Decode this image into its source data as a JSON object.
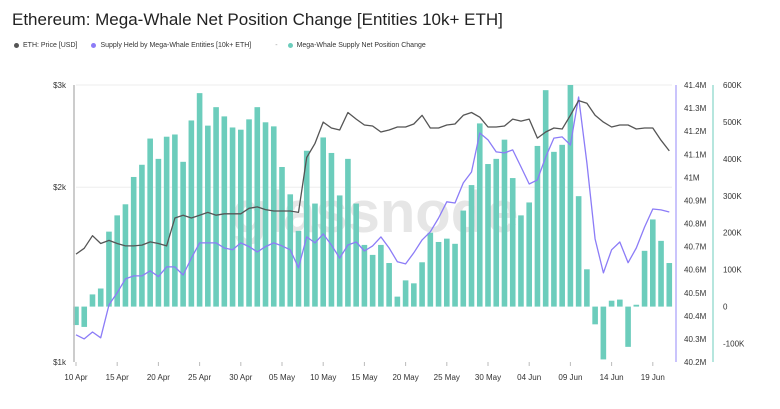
{
  "title": "Ethereum: Mega-Whale Net Position Change [Entities 10k+ ETH]",
  "watermark": "glassnode",
  "legend": [
    {
      "label": "ETH: Price [USD]",
      "color": "#555555"
    },
    {
      "label": "Supply Held by Mega-Whale Entities [10k+ ETH]",
      "color": "#8c7cf7"
    },
    {
      "sep": "-",
      "label": "Mega-Whale Supply Net Position Change",
      "color": "#6ccdbc"
    }
  ],
  "chart_data": {
    "type": "bar+line",
    "title": "Ethereum: Mega-Whale Net Position Change [Entities 10k+ ETH]",
    "start_date": "10 Apr",
    "x_tick_labels": [
      "10 Apr",
      "15 Apr",
      "20 Apr",
      "25 Apr",
      "30 Apr",
      "05 May",
      "10 May",
      "15 May",
      "20 May",
      "25 May",
      "30 May",
      "04 Jun",
      "09 Jun",
      "14 Jun",
      "19 Jun"
    ],
    "axes": {
      "left": {
        "scale": "log",
        "range": [
          1000,
          3000
        ],
        "ticks": [
          "$1k",
          "$2k",
          "$3k"
        ],
        "tick_values": [
          1000,
          2000,
          3000
        ]
      },
      "right_supply": {
        "range": [
          40.2,
          41.4
        ],
        "ticks": [
          "41.4M",
          "41.3M",
          "41.2M",
          "41.1M",
          "41M",
          "40.9M",
          "40.8M",
          "40.7M",
          "40.6M",
          "40.5M",
          "40.4M",
          "40.3M",
          "40.2M"
        ],
        "tick_values": [
          41.4,
          41.3,
          41.2,
          41.1,
          41.0,
          40.9,
          40.8,
          40.7,
          40.6,
          40.5,
          40.4,
          40.3,
          40.2
        ]
      },
      "right_change": {
        "range": [
          -150,
          600
        ],
        "ticks": [
          "600K",
          "500K",
          "400K",
          "300K",
          "200K",
          "100K",
          "0",
          "-100K"
        ],
        "tick_values": [
          600,
          500,
          400,
          300,
          200,
          100,
          0,
          -100
        ]
      }
    },
    "series": [
      {
        "name": "ETH: Price [USD]",
        "axis": "left",
        "kind": "line",
        "color": "#555555",
        "values": [
          1534,
          1570,
          1650,
          1600,
          1620,
          1600,
          1585,
          1585,
          1590,
          1610,
          1600,
          1585,
          1770,
          1790,
          1770,
          1790,
          1810,
          1790,
          1800,
          1800,
          1800,
          1840,
          1850,
          1830,
          1820,
          1820,
          1820,
          1810,
          2250,
          2380,
          2590,
          2530,
          2510,
          2690,
          2620,
          2560,
          2550,
          2490,
          2510,
          2540,
          2540,
          2570,
          2660,
          2530,
          2530,
          2560,
          2570,
          2660,
          2690,
          2640,
          2540,
          2540,
          2550,
          2620,
          2600,
          2620,
          2430,
          2490,
          2530,
          2520,
          2660,
          2820,
          2790,
          2660,
          2590,
          2540,
          2560,
          2560,
          2520,
          2530,
          2530,
          2410,
          2310
        ]
      },
      {
        "name": "Supply Held by Mega-Whale Entities [10k+ ETH]",
        "axis": "right_supply",
        "kind": "line",
        "color": "#8c7cf7",
        "values": [
          40.318,
          40.3,
          40.33,
          40.305,
          40.448,
          40.5,
          40.56,
          40.573,
          40.573,
          40.595,
          40.57,
          40.612,
          40.612,
          40.577,
          40.65,
          40.716,
          40.716,
          40.716,
          40.694,
          40.686,
          40.716,
          40.7,
          40.677,
          40.7,
          40.716,
          40.703,
          40.686,
          40.608,
          40.742,
          40.716,
          40.755,
          40.707,
          40.65,
          40.707,
          40.72,
          40.681,
          40.703,
          40.742,
          40.694,
          40.634,
          40.625,
          40.673,
          40.729,
          40.764,
          40.824,
          40.894,
          40.889,
          40.976,
          41.023,
          41.192,
          41.162,
          41.11,
          41.106,
          41.119,
          41.045,
          40.971,
          40.989,
          41.088,
          41.17,
          41.175,
          41.14,
          41.348,
          41.062,
          40.733,
          40.586,
          40.686,
          40.72,
          40.63,
          40.694,
          40.785,
          40.863,
          40.859,
          40.85
        ]
      },
      {
        "name": "Mega-Whale Supply Net Position Change",
        "axis": "right_change",
        "kind": "bar",
        "color": "#6ccdbc",
        "values": [
          -50,
          -55,
          33,
          49,
          203,
          247,
          277,
          351,
          384,
          455,
          400,
          460,
          466,
          392,
          504,
          578,
          490,
          540,
          515,
          485,
          479,
          507,
          540,
          499,
          488,
          378,
          304,
          205,
          422,
          279,
          458,
          416,
          301,
          400,
          279,
          167,
          140,
          167,
          118,
          27,
          71,
          63,
          120,
          200,
          175,
          184,
          170,
          260,
          329,
          496,
          386,
          400,
          452,
          348,
          247,
          282,
          435,
          586,
          419,
          438,
          608,
          299,
          101,
          -48,
          -143,
          16,
          19,
          -109,
          5,
          151,
          236,
          178,
          118
        ]
      }
    ]
  }
}
